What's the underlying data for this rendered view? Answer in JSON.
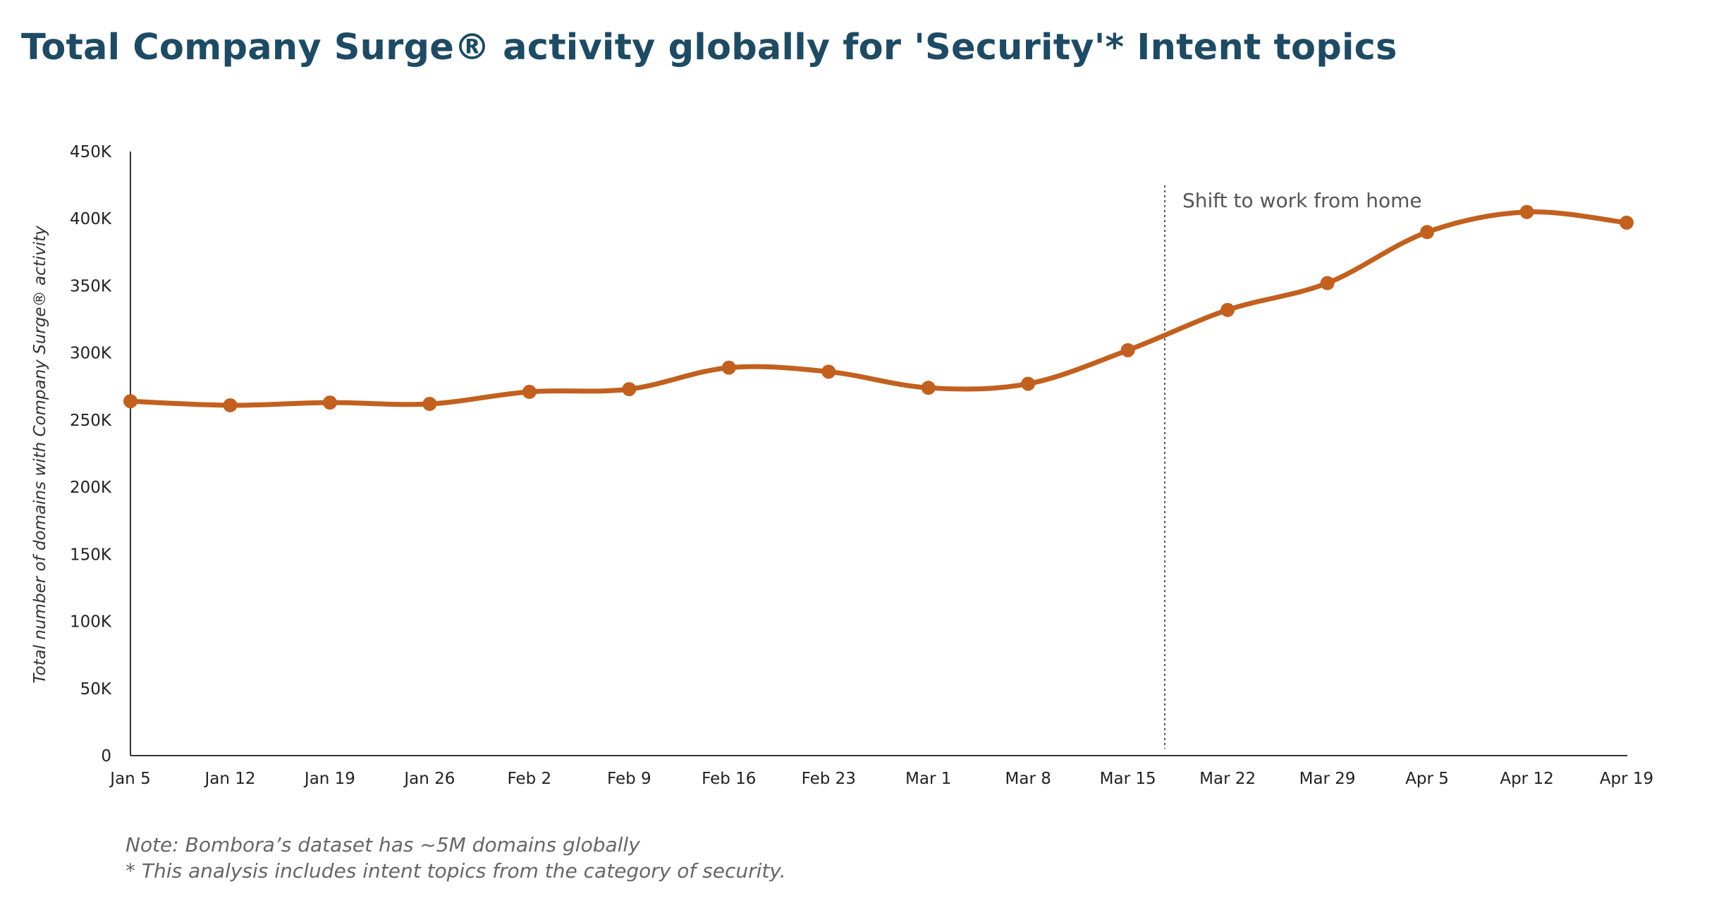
{
  "title": "Total Company Surge® activity globally for 'Security'* Intent topics",
  "notes": [
    "Note: Bombora’s dataset has ~5M domains globally",
    "* This analysis includes intent topics from the category of security."
  ],
  "chart_data": {
    "type": "line",
    "title": "Total Company Surge® activity globally for 'Security'* Intent topics",
    "ylabel": "Total number of domains with Company Surge® activity",
    "xlabel": "",
    "categories": [
      "Jan 5",
      "Jan 12",
      "Jan 19",
      "Jan 26",
      "Feb 2",
      "Feb 9",
      "Feb 16",
      "Feb 23",
      "Mar 1",
      "Mar 8",
      "Mar 15",
      "Mar 22",
      "Mar 29",
      "Apr 5",
      "Apr 12",
      "Apr 19"
    ],
    "values": [
      264000,
      261000,
      263000,
      262000,
      271000,
      273000,
      289000,
      286000,
      274000,
      277000,
      302000,
      332000,
      352000,
      390000,
      405000,
      397000
    ],
    "ylim": [
      0,
      450000
    ],
    "yticks": [
      0,
      50000,
      100000,
      150000,
      200000,
      250000,
      300000,
      350000,
      400000,
      450000
    ],
    "ytick_labels": [
      "0",
      "50K",
      "100K",
      "150K",
      "200K",
      "250K",
      "300K",
      "350K",
      "400K",
      "450K"
    ],
    "grid": false,
    "line_color": "#c2601f",
    "annotation": {
      "text": "Shift to work from home",
      "x_between": [
        "Mar 15",
        "Mar 22"
      ],
      "x_fraction": 0.37,
      "style": "dotted vertical line"
    }
  }
}
